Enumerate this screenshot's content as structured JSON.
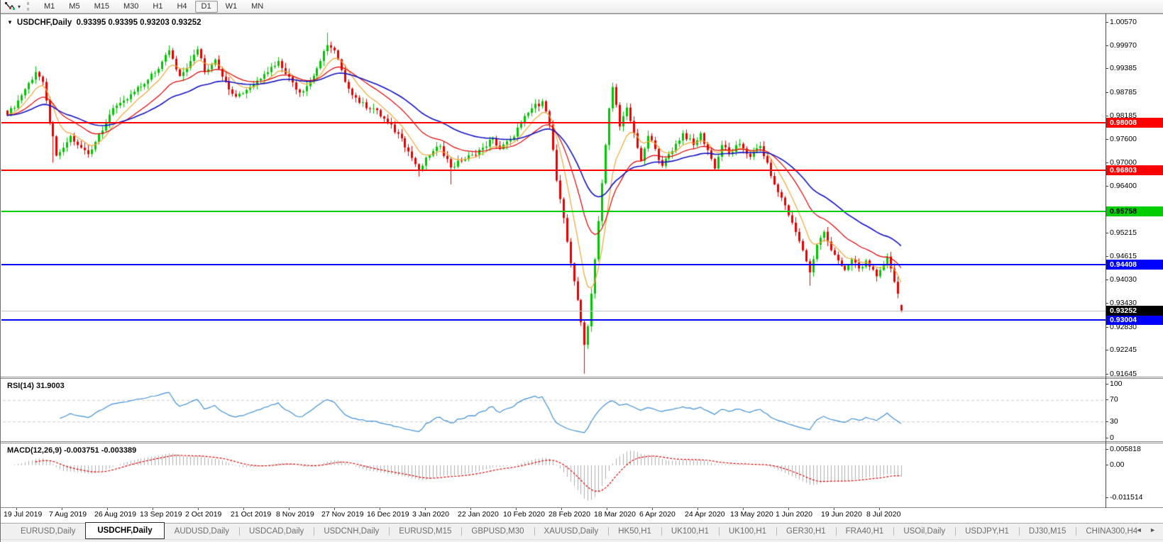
{
  "toolbar": {
    "timeframes": [
      "M1",
      "M5",
      "M15",
      "M30",
      "H1",
      "H4",
      "D1",
      "W1",
      "MN"
    ],
    "active_timeframe": "D1",
    "caret_glyph": "▾"
  },
  "chart": {
    "collapse_glyph": "▼",
    "title": "USDCHF,Daily",
    "ohlc_text": "0.93395 0.93395 0.93203 0.93252"
  },
  "price_axis": {
    "ticks": [
      "1.00570",
      "0.99970",
      "0.99385",
      "0.98785",
      "0.98185",
      "0.97600",
      "0.97000",
      "0.96400",
      "0.95215",
      "0.94615",
      "0.94030",
      "0.93430",
      "0.92830",
      "0.92245",
      "0.91645"
    ]
  },
  "levels": [
    {
      "price": 0.98008,
      "label": "0.98008",
      "line_color": "#FF0000",
      "text_color": "#FFFFFF"
    },
    {
      "price": 0.96803,
      "label": "0.96803",
      "line_color": "#FF0000",
      "text_color": "#FFFFFF"
    },
    {
      "price": 0.95758,
      "label": "0.95758",
      "line_color": "#00CE00",
      "text_color": "#000000"
    },
    {
      "price": 0.94408,
      "label": "0.94408",
      "line_color": "#0000FF",
      "text_color": "#FFFFFF"
    },
    {
      "price": 0.93004,
      "label": "0.93004",
      "line_color": "#0000FF",
      "text_color": "#FFFFFF"
    }
  ],
  "current_price": {
    "value": 0.93252,
    "label": "0.93252",
    "box_color": "#000000",
    "text_color": "#FFFFFF"
  },
  "indicators": {
    "rsi": {
      "label": "RSI(14)",
      "value": "31.9003",
      "axis_ticks": [
        "100",
        "70",
        "30",
        "0"
      ],
      "guide_levels": [
        70,
        30
      ],
      "line_color": "#3E8FD6"
    },
    "macd": {
      "label": "MACD(12,26,9)",
      "values_text": "-0.003751 -0.003389",
      "axis_ticks": [
        "0.005818",
        "0.00",
        "-0.011514"
      ],
      "histogram_color": "#ACACAC",
      "signal_color": "#E00000"
    }
  },
  "time_axis": {
    "labels": [
      "19 Jul 2019",
      "7 Aug 2019",
      "26 Aug 2019",
      "13 Sep 2019",
      "2 Oct 2019",
      "21 Oct 2019",
      "8 Nov 2019",
      "27 Nov 2019",
      "16 Dec 2019",
      "3 Jan 2020",
      "22 Jan 2020",
      "10 Feb 2020",
      "28 Feb 2020",
      "18 Mar 2020",
      "6 Apr 2020",
      "24 Apr 2020",
      "13 May 2020",
      "1 Jun 2020",
      "19 Jun 2020",
      "8 Jul 2020"
    ]
  },
  "tabbar": {
    "tabs": [
      "EURUSD,Daily",
      "USDCHF,Daily",
      "AUDUSD,Daily",
      "USDCAD,Daily",
      "USDCNH,Daily",
      "EURUSD,M15",
      "GBPUSD,M30",
      "XAUUSD,Daily",
      "HK50,H1",
      "UK100,H1",
      "UK100,H1",
      "GER30,H1",
      "FRA40,H1",
      "USOil,Daily",
      "USDJPY,H1",
      "DJ30,M15",
      "CHINA300,H4"
    ],
    "active_index": 1,
    "scroll_left_glyph": "◄",
    "scroll_right_glyph": "►"
  },
  "chart_data": [
    {
      "type": "candlestick",
      "symbol": "USDCHF",
      "timeframe": "Daily",
      "open": 0.93395,
      "high": 0.93395,
      "low": 0.93203,
      "close": 0.93252,
      "bars": 255,
      "ylim": [
        0.91645,
        1.0057
      ],
      "up_color": "#00C400",
      "down_color": "#E60000",
      "h_levels": [
        0.98008,
        0.96803,
        0.95758,
        0.94408,
        0.93004
      ],
      "x_labels": [
        "19 Jul 2019",
        "7 Aug 2019",
        "26 Aug 2019",
        "13 Sep 2019",
        "2 Oct 2019",
        "21 Oct 2019",
        "8 Nov 2019",
        "27 Nov 2019",
        "16 Dec 2019",
        "3 Jan 2020",
        "22 Jan 2020",
        "10 Feb 2020",
        "28 Feb 2020",
        "18 Mar 2020",
        "6 Apr 2020",
        "24 Apr 2020",
        "13 May 2020",
        "1 Jun 2020",
        "19 Jun 2020",
        "8 Jul 2020"
      ],
      "close_anchors": [
        [
          0,
          0.982
        ],
        [
          3,
          0.9858
        ],
        [
          6,
          0.9902
        ],
        [
          8,
          0.993
        ],
        [
          10,
          0.9905
        ],
        [
          12,
          0.98
        ],
        [
          14,
          0.9718
        ],
        [
          16,
          0.9738
        ],
        [
          18,
          0.9768
        ],
        [
          20,
          0.9745
        ],
        [
          23,
          0.9722
        ],
        [
          26,
          0.9772
        ],
        [
          29,
          0.9822
        ],
        [
          32,
          0.9852
        ],
        [
          36,
          0.988
        ],
        [
          39,
          0.99
        ],
        [
          43,
          0.9938
        ],
        [
          46,
          0.9985
        ],
        [
          49,
          0.992
        ],
        [
          52,
          0.9958
        ],
        [
          54,
          0.9988
        ],
        [
          56,
          0.993
        ],
        [
          59,
          0.9962
        ],
        [
          62,
          0.9905
        ],
        [
          65,
          0.9868
        ],
        [
          69,
          0.9892
        ],
        [
          73,
          0.9925
        ],
        [
          77,
          0.9958
        ],
        [
          80,
          0.9918
        ],
        [
          83,
          0.9878
        ],
        [
          86,
          0.9905
        ],
        [
          89,
          0.9958
        ],
        [
          91,
          0.9998
        ],
        [
          93,
          0.9985
        ],
        [
          96,
          0.9905
        ],
        [
          100,
          0.9852
        ],
        [
          104,
          0.9838
        ],
        [
          108,
          0.9802
        ],
        [
          112,
          0.9762
        ],
        [
          115,
          0.9712
        ],
        [
          117,
          0.9682
        ],
        [
          120,
          0.9718
        ],
        [
          123,
          0.9742
        ],
        [
          126,
          0.9688
        ],
        [
          129,
          0.9705
        ],
        [
          132,
          0.972
        ],
        [
          135,
          0.9738
        ],
        [
          138,
          0.9762
        ],
        [
          140,
          0.9735
        ],
        [
          143,
          0.9758
        ],
        [
          146,
          0.98
        ],
        [
          149,
          0.9838
        ],
        [
          152,
          0.9856
        ],
        [
          154,
          0.9798
        ],
        [
          156,
          0.9655
        ],
        [
          158,
          0.956
        ],
        [
          160,
          0.9445
        ],
        [
          162,
          0.9352
        ],
        [
          164,
          0.9238
        ],
        [
          165,
          0.9285
        ],
        [
          166,
          0.9368
        ],
        [
          167,
          0.9455
        ],
        [
          168,
          0.9552
        ],
        [
          169,
          0.9648
        ],
        [
          170,
          0.9745
        ],
        [
          171,
          0.9838
        ],
        [
          172,
          0.9892
        ],
        [
          174,
          0.9792
        ],
        [
          176,
          0.984
        ],
        [
          178,
          0.9775
        ],
        [
          180,
          0.9705
        ],
        [
          182,
          0.9768
        ],
        [
          184,
          0.9735
        ],
        [
          186,
          0.9692
        ],
        [
          188,
          0.9722
        ],
        [
          190,
          0.9748
        ],
        [
          192,
          0.9775
        ],
        [
          195,
          0.9745
        ],
        [
          197,
          0.9775
        ],
        [
          199,
          0.9732
        ],
        [
          201,
          0.9685
        ],
        [
          203,
          0.9745
        ],
        [
          205,
          0.9722
        ],
        [
          208,
          0.9748
        ],
        [
          211,
          0.9715
        ],
        [
          214,
          0.9742
        ],
        [
          216,
          0.97
        ],
        [
          218,
          0.9645
        ],
        [
          221,
          0.9592
        ],
        [
          223,
          0.9548
        ],
        [
          226,
          0.9478
        ],
        [
          228,
          0.9422
        ],
        [
          230,
          0.9492
        ],
        [
          232,
          0.9525
        ],
        [
          234,
          0.9478
        ],
        [
          236,
          0.9452
        ],
        [
          238,
          0.9428
        ],
        [
          240,
          0.9455
        ],
        [
          242,
          0.9432
        ],
        [
          244,
          0.9452
        ],
        [
          247,
          0.9412
        ],
        [
          249,
          0.9442
        ],
        [
          250,
          0.9462
        ],
        [
          251,
          0.9432
        ],
        [
          252,
          0.9398
        ],
        [
          253,
          0.9368
        ],
        [
          254,
          0.93252
        ]
      ],
      "wick_highs": [
        [
          8,
          0.9945
        ],
        [
          46,
          0.9998
        ],
        [
          54,
          0.9996
        ],
        [
          91,
          1.003
        ],
        [
          152,
          0.9862
        ],
        [
          172,
          0.9903
        ],
        [
          250,
          0.9468
        ]
      ],
      "wick_lows": [
        [
          13,
          0.97
        ],
        [
          117,
          0.9665
        ],
        [
          126,
          0.9645
        ],
        [
          164,
          0.9165
        ],
        [
          228,
          0.9388
        ]
      ],
      "moving_averages": [
        {
          "period": 8,
          "color": "#F0A434",
          "width": 1.2
        },
        {
          "period": 20,
          "color": "#E00000",
          "width": 1.2
        },
        {
          "period": 40,
          "color": "#1111C4",
          "width": 1.6
        }
      ]
    },
    {
      "type": "line",
      "name": "RSI(14)",
      "source": "close",
      "period": 14,
      "current": 31.9003,
      "ylim": [
        0,
        100
      ],
      "guides": [
        70,
        30
      ]
    },
    {
      "type": "macd",
      "fast": 12,
      "slow": 26,
      "signal": 9,
      "current_main": -0.003751,
      "current_signal": -0.003389,
      "ylim": [
        -0.011514,
        0.005818
      ]
    }
  ]
}
